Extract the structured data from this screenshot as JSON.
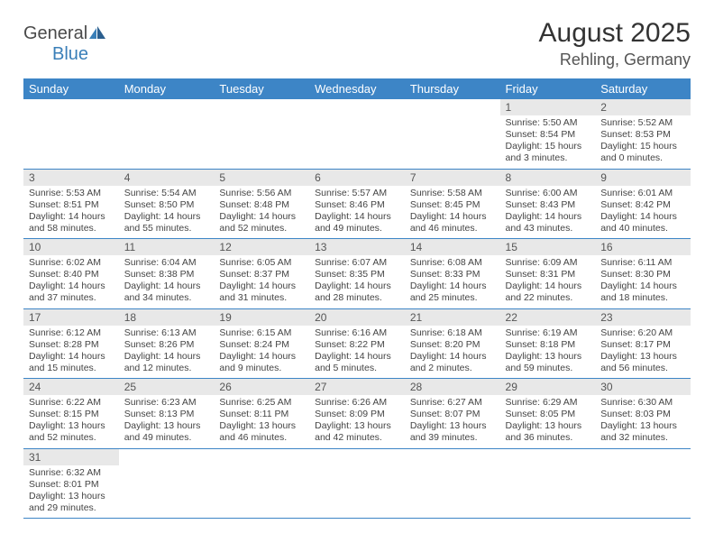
{
  "logo": {
    "text1": "General",
    "text2": "Blue"
  },
  "title": {
    "month": "August 2025",
    "location": "Rehling, Germany"
  },
  "colors": {
    "header_bg": "#3d85c6",
    "daynum_bg": "#e8e8e8",
    "border": "#3d85c6"
  },
  "weekdays": [
    "Sunday",
    "Monday",
    "Tuesday",
    "Wednesday",
    "Thursday",
    "Friday",
    "Saturday"
  ],
  "weeks": [
    [
      null,
      null,
      null,
      null,
      null,
      {
        "n": "1",
        "sr": "Sunrise: 5:50 AM",
        "ss": "Sunset: 8:54 PM",
        "dl1": "Daylight: 15 hours",
        "dl2": "and 3 minutes."
      },
      {
        "n": "2",
        "sr": "Sunrise: 5:52 AM",
        "ss": "Sunset: 8:53 PM",
        "dl1": "Daylight: 15 hours",
        "dl2": "and 0 minutes."
      }
    ],
    [
      {
        "n": "3",
        "sr": "Sunrise: 5:53 AM",
        "ss": "Sunset: 8:51 PM",
        "dl1": "Daylight: 14 hours",
        "dl2": "and 58 minutes."
      },
      {
        "n": "4",
        "sr": "Sunrise: 5:54 AM",
        "ss": "Sunset: 8:50 PM",
        "dl1": "Daylight: 14 hours",
        "dl2": "and 55 minutes."
      },
      {
        "n": "5",
        "sr": "Sunrise: 5:56 AM",
        "ss": "Sunset: 8:48 PM",
        "dl1": "Daylight: 14 hours",
        "dl2": "and 52 minutes."
      },
      {
        "n": "6",
        "sr": "Sunrise: 5:57 AM",
        "ss": "Sunset: 8:46 PM",
        "dl1": "Daylight: 14 hours",
        "dl2": "and 49 minutes."
      },
      {
        "n": "7",
        "sr": "Sunrise: 5:58 AM",
        "ss": "Sunset: 8:45 PM",
        "dl1": "Daylight: 14 hours",
        "dl2": "and 46 minutes."
      },
      {
        "n": "8",
        "sr": "Sunrise: 6:00 AM",
        "ss": "Sunset: 8:43 PM",
        "dl1": "Daylight: 14 hours",
        "dl2": "and 43 minutes."
      },
      {
        "n": "9",
        "sr": "Sunrise: 6:01 AM",
        "ss": "Sunset: 8:42 PM",
        "dl1": "Daylight: 14 hours",
        "dl2": "and 40 minutes."
      }
    ],
    [
      {
        "n": "10",
        "sr": "Sunrise: 6:02 AM",
        "ss": "Sunset: 8:40 PM",
        "dl1": "Daylight: 14 hours",
        "dl2": "and 37 minutes."
      },
      {
        "n": "11",
        "sr": "Sunrise: 6:04 AM",
        "ss": "Sunset: 8:38 PM",
        "dl1": "Daylight: 14 hours",
        "dl2": "and 34 minutes."
      },
      {
        "n": "12",
        "sr": "Sunrise: 6:05 AM",
        "ss": "Sunset: 8:37 PM",
        "dl1": "Daylight: 14 hours",
        "dl2": "and 31 minutes."
      },
      {
        "n": "13",
        "sr": "Sunrise: 6:07 AM",
        "ss": "Sunset: 8:35 PM",
        "dl1": "Daylight: 14 hours",
        "dl2": "and 28 minutes."
      },
      {
        "n": "14",
        "sr": "Sunrise: 6:08 AM",
        "ss": "Sunset: 8:33 PM",
        "dl1": "Daylight: 14 hours",
        "dl2": "and 25 minutes."
      },
      {
        "n": "15",
        "sr": "Sunrise: 6:09 AM",
        "ss": "Sunset: 8:31 PM",
        "dl1": "Daylight: 14 hours",
        "dl2": "and 22 minutes."
      },
      {
        "n": "16",
        "sr": "Sunrise: 6:11 AM",
        "ss": "Sunset: 8:30 PM",
        "dl1": "Daylight: 14 hours",
        "dl2": "and 18 minutes."
      }
    ],
    [
      {
        "n": "17",
        "sr": "Sunrise: 6:12 AM",
        "ss": "Sunset: 8:28 PM",
        "dl1": "Daylight: 14 hours",
        "dl2": "and 15 minutes."
      },
      {
        "n": "18",
        "sr": "Sunrise: 6:13 AM",
        "ss": "Sunset: 8:26 PM",
        "dl1": "Daylight: 14 hours",
        "dl2": "and 12 minutes."
      },
      {
        "n": "19",
        "sr": "Sunrise: 6:15 AM",
        "ss": "Sunset: 8:24 PM",
        "dl1": "Daylight: 14 hours",
        "dl2": "and 9 minutes."
      },
      {
        "n": "20",
        "sr": "Sunrise: 6:16 AM",
        "ss": "Sunset: 8:22 PM",
        "dl1": "Daylight: 14 hours",
        "dl2": "and 5 minutes."
      },
      {
        "n": "21",
        "sr": "Sunrise: 6:18 AM",
        "ss": "Sunset: 8:20 PM",
        "dl1": "Daylight: 14 hours",
        "dl2": "and 2 minutes."
      },
      {
        "n": "22",
        "sr": "Sunrise: 6:19 AM",
        "ss": "Sunset: 8:18 PM",
        "dl1": "Daylight: 13 hours",
        "dl2": "and 59 minutes."
      },
      {
        "n": "23",
        "sr": "Sunrise: 6:20 AM",
        "ss": "Sunset: 8:17 PM",
        "dl1": "Daylight: 13 hours",
        "dl2": "and 56 minutes."
      }
    ],
    [
      {
        "n": "24",
        "sr": "Sunrise: 6:22 AM",
        "ss": "Sunset: 8:15 PM",
        "dl1": "Daylight: 13 hours",
        "dl2": "and 52 minutes."
      },
      {
        "n": "25",
        "sr": "Sunrise: 6:23 AM",
        "ss": "Sunset: 8:13 PM",
        "dl1": "Daylight: 13 hours",
        "dl2": "and 49 minutes."
      },
      {
        "n": "26",
        "sr": "Sunrise: 6:25 AM",
        "ss": "Sunset: 8:11 PM",
        "dl1": "Daylight: 13 hours",
        "dl2": "and 46 minutes."
      },
      {
        "n": "27",
        "sr": "Sunrise: 6:26 AM",
        "ss": "Sunset: 8:09 PM",
        "dl1": "Daylight: 13 hours",
        "dl2": "and 42 minutes."
      },
      {
        "n": "28",
        "sr": "Sunrise: 6:27 AM",
        "ss": "Sunset: 8:07 PM",
        "dl1": "Daylight: 13 hours",
        "dl2": "and 39 minutes."
      },
      {
        "n": "29",
        "sr": "Sunrise: 6:29 AM",
        "ss": "Sunset: 8:05 PM",
        "dl1": "Daylight: 13 hours",
        "dl2": "and 36 minutes."
      },
      {
        "n": "30",
        "sr": "Sunrise: 6:30 AM",
        "ss": "Sunset: 8:03 PM",
        "dl1": "Daylight: 13 hours",
        "dl2": "and 32 minutes."
      }
    ],
    [
      {
        "n": "31",
        "sr": "Sunrise: 6:32 AM",
        "ss": "Sunset: 8:01 PM",
        "dl1": "Daylight: 13 hours",
        "dl2": "and 29 minutes."
      },
      null,
      null,
      null,
      null,
      null,
      null
    ]
  ]
}
